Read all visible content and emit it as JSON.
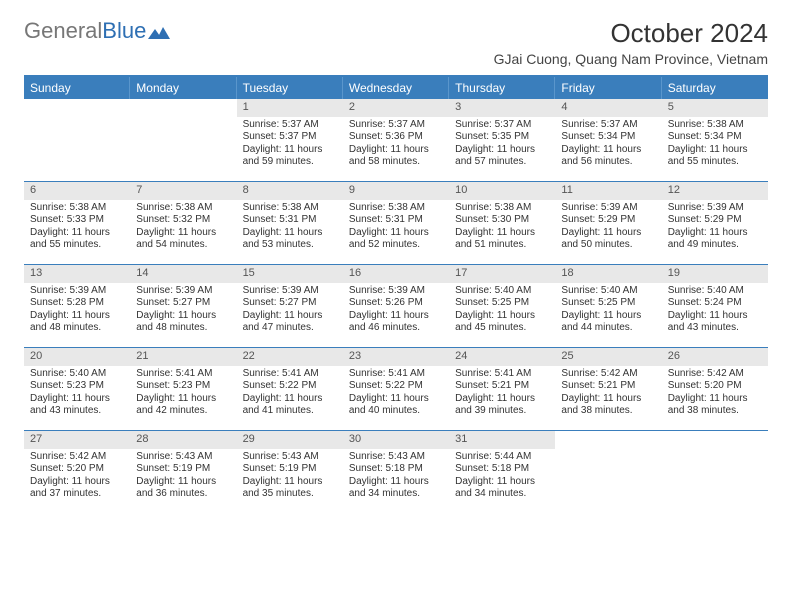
{
  "logo": {
    "part1": "General",
    "part2": "Blue"
  },
  "title": "October 2024",
  "location": "GJai Cuong, Quang Nam Province, Vietnam",
  "colors": {
    "header_bg": "#3a7ebc",
    "header_text": "#ffffff",
    "num_bg": "#e8e8e8",
    "border": "#3a7ebc"
  },
  "day_headers": [
    "Sunday",
    "Monday",
    "Tuesday",
    "Wednesday",
    "Thursday",
    "Friday",
    "Saturday"
  ],
  "weeks": [
    [
      {
        "day": "",
        "sunrise": "",
        "sunset": "",
        "daylight": ""
      },
      {
        "day": "",
        "sunrise": "",
        "sunset": "",
        "daylight": ""
      },
      {
        "day": "1",
        "sunrise": "Sunrise: 5:37 AM",
        "sunset": "Sunset: 5:37 PM",
        "daylight": "Daylight: 11 hours and 59 minutes."
      },
      {
        "day": "2",
        "sunrise": "Sunrise: 5:37 AM",
        "sunset": "Sunset: 5:36 PM",
        "daylight": "Daylight: 11 hours and 58 minutes."
      },
      {
        "day": "3",
        "sunrise": "Sunrise: 5:37 AM",
        "sunset": "Sunset: 5:35 PM",
        "daylight": "Daylight: 11 hours and 57 minutes."
      },
      {
        "day": "4",
        "sunrise": "Sunrise: 5:37 AM",
        "sunset": "Sunset: 5:34 PM",
        "daylight": "Daylight: 11 hours and 56 minutes."
      },
      {
        "day": "5",
        "sunrise": "Sunrise: 5:38 AM",
        "sunset": "Sunset: 5:34 PM",
        "daylight": "Daylight: 11 hours and 55 minutes."
      }
    ],
    [
      {
        "day": "6",
        "sunrise": "Sunrise: 5:38 AM",
        "sunset": "Sunset: 5:33 PM",
        "daylight": "Daylight: 11 hours and 55 minutes."
      },
      {
        "day": "7",
        "sunrise": "Sunrise: 5:38 AM",
        "sunset": "Sunset: 5:32 PM",
        "daylight": "Daylight: 11 hours and 54 minutes."
      },
      {
        "day": "8",
        "sunrise": "Sunrise: 5:38 AM",
        "sunset": "Sunset: 5:31 PM",
        "daylight": "Daylight: 11 hours and 53 minutes."
      },
      {
        "day": "9",
        "sunrise": "Sunrise: 5:38 AM",
        "sunset": "Sunset: 5:31 PM",
        "daylight": "Daylight: 11 hours and 52 minutes."
      },
      {
        "day": "10",
        "sunrise": "Sunrise: 5:38 AM",
        "sunset": "Sunset: 5:30 PM",
        "daylight": "Daylight: 11 hours and 51 minutes."
      },
      {
        "day": "11",
        "sunrise": "Sunrise: 5:39 AM",
        "sunset": "Sunset: 5:29 PM",
        "daylight": "Daylight: 11 hours and 50 minutes."
      },
      {
        "day": "12",
        "sunrise": "Sunrise: 5:39 AM",
        "sunset": "Sunset: 5:29 PM",
        "daylight": "Daylight: 11 hours and 49 minutes."
      }
    ],
    [
      {
        "day": "13",
        "sunrise": "Sunrise: 5:39 AM",
        "sunset": "Sunset: 5:28 PM",
        "daylight": "Daylight: 11 hours and 48 minutes."
      },
      {
        "day": "14",
        "sunrise": "Sunrise: 5:39 AM",
        "sunset": "Sunset: 5:27 PM",
        "daylight": "Daylight: 11 hours and 48 minutes."
      },
      {
        "day": "15",
        "sunrise": "Sunrise: 5:39 AM",
        "sunset": "Sunset: 5:27 PM",
        "daylight": "Daylight: 11 hours and 47 minutes."
      },
      {
        "day": "16",
        "sunrise": "Sunrise: 5:39 AM",
        "sunset": "Sunset: 5:26 PM",
        "daylight": "Daylight: 11 hours and 46 minutes."
      },
      {
        "day": "17",
        "sunrise": "Sunrise: 5:40 AM",
        "sunset": "Sunset: 5:25 PM",
        "daylight": "Daylight: 11 hours and 45 minutes."
      },
      {
        "day": "18",
        "sunrise": "Sunrise: 5:40 AM",
        "sunset": "Sunset: 5:25 PM",
        "daylight": "Daylight: 11 hours and 44 minutes."
      },
      {
        "day": "19",
        "sunrise": "Sunrise: 5:40 AM",
        "sunset": "Sunset: 5:24 PM",
        "daylight": "Daylight: 11 hours and 43 minutes."
      }
    ],
    [
      {
        "day": "20",
        "sunrise": "Sunrise: 5:40 AM",
        "sunset": "Sunset: 5:23 PM",
        "daylight": "Daylight: 11 hours and 43 minutes."
      },
      {
        "day": "21",
        "sunrise": "Sunrise: 5:41 AM",
        "sunset": "Sunset: 5:23 PM",
        "daylight": "Daylight: 11 hours and 42 minutes."
      },
      {
        "day": "22",
        "sunrise": "Sunrise: 5:41 AM",
        "sunset": "Sunset: 5:22 PM",
        "daylight": "Daylight: 11 hours and 41 minutes."
      },
      {
        "day": "23",
        "sunrise": "Sunrise: 5:41 AM",
        "sunset": "Sunset: 5:22 PM",
        "daylight": "Daylight: 11 hours and 40 minutes."
      },
      {
        "day": "24",
        "sunrise": "Sunrise: 5:41 AM",
        "sunset": "Sunset: 5:21 PM",
        "daylight": "Daylight: 11 hours and 39 minutes."
      },
      {
        "day": "25",
        "sunrise": "Sunrise: 5:42 AM",
        "sunset": "Sunset: 5:21 PM",
        "daylight": "Daylight: 11 hours and 38 minutes."
      },
      {
        "day": "26",
        "sunrise": "Sunrise: 5:42 AM",
        "sunset": "Sunset: 5:20 PM",
        "daylight": "Daylight: 11 hours and 38 minutes."
      }
    ],
    [
      {
        "day": "27",
        "sunrise": "Sunrise: 5:42 AM",
        "sunset": "Sunset: 5:20 PM",
        "daylight": "Daylight: 11 hours and 37 minutes."
      },
      {
        "day": "28",
        "sunrise": "Sunrise: 5:43 AM",
        "sunset": "Sunset: 5:19 PM",
        "daylight": "Daylight: 11 hours and 36 minutes."
      },
      {
        "day": "29",
        "sunrise": "Sunrise: 5:43 AM",
        "sunset": "Sunset: 5:19 PM",
        "daylight": "Daylight: 11 hours and 35 minutes."
      },
      {
        "day": "30",
        "sunrise": "Sunrise: 5:43 AM",
        "sunset": "Sunset: 5:18 PM",
        "daylight": "Daylight: 11 hours and 34 minutes."
      },
      {
        "day": "31",
        "sunrise": "Sunrise: 5:44 AM",
        "sunset": "Sunset: 5:18 PM",
        "daylight": "Daylight: 11 hours and 34 minutes."
      },
      {
        "day": "",
        "sunrise": "",
        "sunset": "",
        "daylight": ""
      },
      {
        "day": "",
        "sunrise": "",
        "sunset": "",
        "daylight": ""
      }
    ]
  ]
}
